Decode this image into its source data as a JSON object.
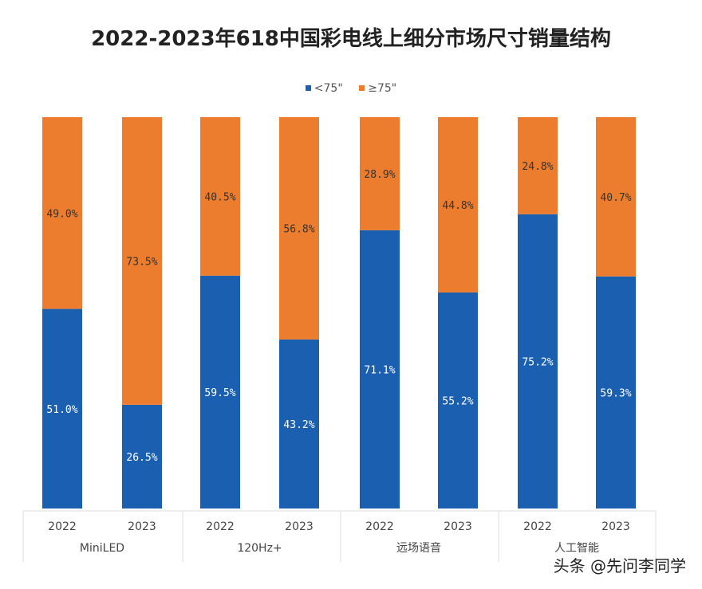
{
  "chart_data": {
    "type": "bar",
    "stacked": true,
    "normalized": true,
    "title": "2022-2023年618中国彩电线上细分市场尺寸销量结构",
    "groups": [
      "MiniLED",
      "120Hz+",
      "远场语音",
      "人工智能"
    ],
    "categories": [
      "2022",
      "2023",
      "2022",
      "2023",
      "2022",
      "2023",
      "2022",
      "2023"
    ],
    "series": [
      {
        "name": "<75\"",
        "color": "#1a5fb0",
        "values": [
          51.0,
          26.5,
          59.5,
          43.2,
          71.1,
          55.2,
          75.2,
          59.3
        ],
        "labels": [
          "51.0%",
          "26.5%",
          "59.5%",
          "43.2%",
          "71.1%",
          "55.2%",
          "75.2%",
          "59.3%"
        ]
      },
      {
        "name": "≥75\"",
        "color": "#ec7d2e",
        "values": [
          49.0,
          73.5,
          40.5,
          56.8,
          28.9,
          44.8,
          24.8,
          40.7
        ],
        "labels": [
          "49.0%",
          "73.5%",
          "40.5%",
          "56.8%",
          "28.9%",
          "44.8%",
          "24.8%",
          "40.7%"
        ]
      }
    ],
    "ylim": [
      0,
      100
    ],
    "legend": "top-center",
    "grid": false
  },
  "watermark_text": "头条 @先问李同学"
}
